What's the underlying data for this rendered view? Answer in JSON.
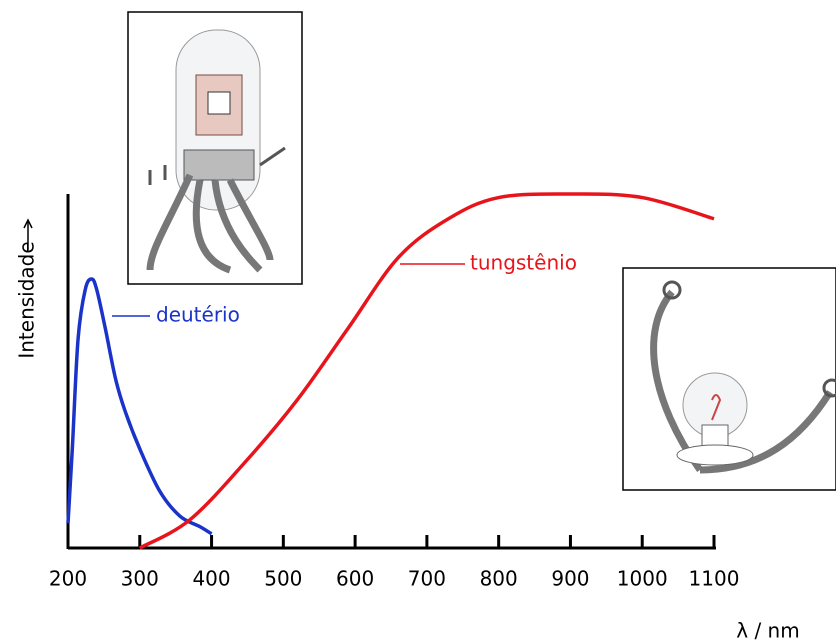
{
  "chart_data": {
    "type": "line",
    "xlabel": "λ / nm",
    "ylabel": "Intensidade",
    "xlim": [
      200,
      1100
    ],
    "xticks": [
      200,
      300,
      400,
      500,
      600,
      700,
      800,
      900,
      1000,
      1100
    ],
    "ylim": [
      0,
      100
    ],
    "series": [
      {
        "name": "deutério",
        "color": "#1a33c8",
        "x": [
          200,
          206,
          214,
          224,
          233,
          240,
          252,
          266,
          279,
          300,
          328,
          356,
          384,
          400
        ],
        "values": [
          7,
          28,
          59,
          73,
          76,
          73,
          62,
          48,
          39,
          28,
          16,
          9,
          6,
          4
        ]
      },
      {
        "name": "tungstênio",
        "color": "#e8141c",
        "x": [
          300,
          370,
          450,
          520,
          590,
          660,
          730,
          800,
          900,
          1000,
          1100
        ],
        "values": [
          0,
          8,
          25,
          42,
          62,
          82,
          93,
          99,
          100,
          99,
          93
        ]
      }
    ]
  }
}
